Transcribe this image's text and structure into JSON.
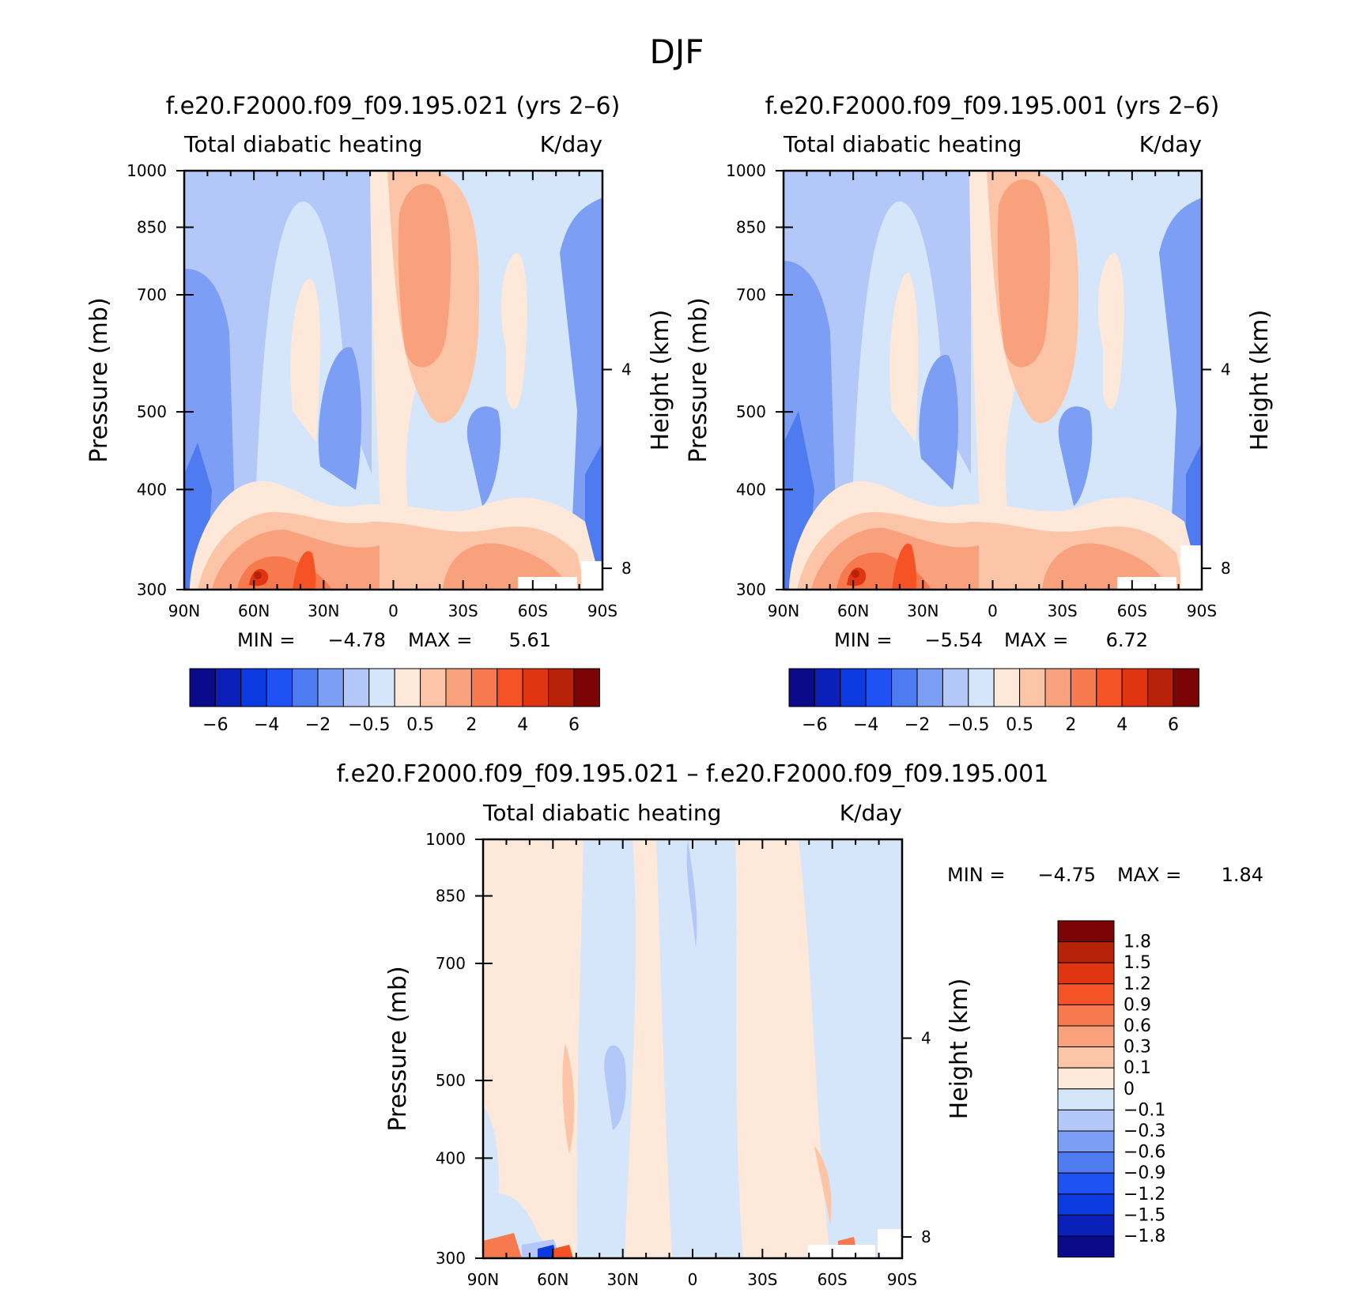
{
  "title": "DJF",
  "chart_data": [
    {
      "type": "heatmap",
      "id": "panel-021",
      "run_title": "f.e20.F2000.f09_f09.195.021 (yrs 2–6)",
      "left_string": "Total diabatic heating",
      "right_string": "K/day",
      "xlabel": "",
      "ylabel": "Pressure (mb)",
      "ylabel_right": "Height (km)",
      "x_ticks": [
        "90N",
        "60N",
        "30N",
        "0",
        "30S",
        "60S",
        "90S"
      ],
      "y_ticks": [
        "300",
        "400",
        "500",
        "700",
        "850",
        "1000"
      ],
      "y_ticks_right": [
        "8",
        "4"
      ],
      "xlim": [
        90,
        -90
      ],
      "ylim": [
        1000,
        300
      ],
      "y_scale": "log",
      "stats": {
        "min_label": "MIN =",
        "min": "−4.78",
        "max_label": "MAX =",
        "max": "5.61"
      },
      "colorbar": {
        "orientation": "horizontal",
        "colors": [
          "#0a0a8a",
          "#0a20b8",
          "#0a3ae0",
          "#1f52f5",
          "#4e7bf0",
          "#7c9ef5",
          "#b3c8f8",
          "#d6e6fa",
          "#fde8d9",
          "#fcc5a8",
          "#f9a07d",
          "#f77a4e",
          "#f55225",
          "#df3510",
          "#b82208",
          "#7c0404"
        ],
        "labels": [
          "−6",
          "−4",
          "−2",
          "−0.5",
          "0.5",
          "2",
          "4",
          "6"
        ]
      }
    },
    {
      "type": "heatmap",
      "id": "panel-001",
      "run_title": "f.e20.F2000.f09_f09.195.001 (yrs 2–6)",
      "left_string": "Total diabatic heating",
      "right_string": "K/day",
      "xlabel": "",
      "ylabel": "Pressure (mb)",
      "ylabel_right": "Height (km)",
      "x_ticks": [
        "90N",
        "60N",
        "30N",
        "0",
        "30S",
        "60S",
        "90S"
      ],
      "y_ticks": [
        "300",
        "400",
        "500",
        "700",
        "850",
        "1000"
      ],
      "y_ticks_right": [
        "8",
        "4"
      ],
      "xlim": [
        90,
        -90
      ],
      "ylim": [
        1000,
        300
      ],
      "y_scale": "log",
      "stats": {
        "min_label": "MIN =",
        "min": "−5.54",
        "max_label": "MAX =",
        "max": "6.72"
      },
      "colorbar": {
        "orientation": "horizontal",
        "colors": [
          "#0a0a8a",
          "#0a20b8",
          "#0a3ae0",
          "#1f52f5",
          "#4e7bf0",
          "#7c9ef5",
          "#b3c8f8",
          "#d6e6fa",
          "#fde8d9",
          "#fcc5a8",
          "#f9a07d",
          "#f77a4e",
          "#f55225",
          "#df3510",
          "#b82208",
          "#7c0404"
        ],
        "labels": [
          "−6",
          "−4",
          "−2",
          "−0.5",
          "0.5",
          "2",
          "4",
          "6"
        ]
      }
    },
    {
      "type": "heatmap",
      "id": "panel-diff",
      "run_title": "f.e20.F2000.f09_f09.195.021 – f.e20.F2000.f09_f09.195.001",
      "left_string": "Total diabatic heating",
      "right_string": "K/day",
      "xlabel": "",
      "ylabel": "Pressure (mb)",
      "ylabel_right": "Height (km)",
      "x_ticks": [
        "90N",
        "60N",
        "30N",
        "0",
        "30S",
        "60S",
        "90S"
      ],
      "y_ticks": [
        "300",
        "400",
        "500",
        "700",
        "850",
        "1000"
      ],
      "y_ticks_right": [
        "8",
        "4"
      ],
      "xlim": [
        90,
        -90
      ],
      "ylim": [
        1000,
        300
      ],
      "y_scale": "log",
      "stats": {
        "min_label": "MIN =",
        "min": "−4.75",
        "max_label": "MAX =",
        "max": "1.84"
      },
      "colorbar": {
        "orientation": "vertical",
        "colors": [
          "#7c0404",
          "#b82208",
          "#df3510",
          "#f55225",
          "#f77a4e",
          "#f9a07d",
          "#fcc5a8",
          "#fde8d9",
          "#d6e6fa",
          "#b3c8f8",
          "#7c9ef5",
          "#4e7bf0",
          "#1f52f5",
          "#0a3ae0",
          "#0a20b8",
          "#0a0a8a"
        ],
        "labels": [
          "1.8",
          "1.5",
          "1.2",
          "0.9",
          "0.6",
          "0.3",
          "0.1",
          "0",
          "−0.1",
          "−0.3",
          "−0.6",
          "−0.9",
          "−1.2",
          "−1.5",
          "−1.8"
        ]
      }
    }
  ]
}
